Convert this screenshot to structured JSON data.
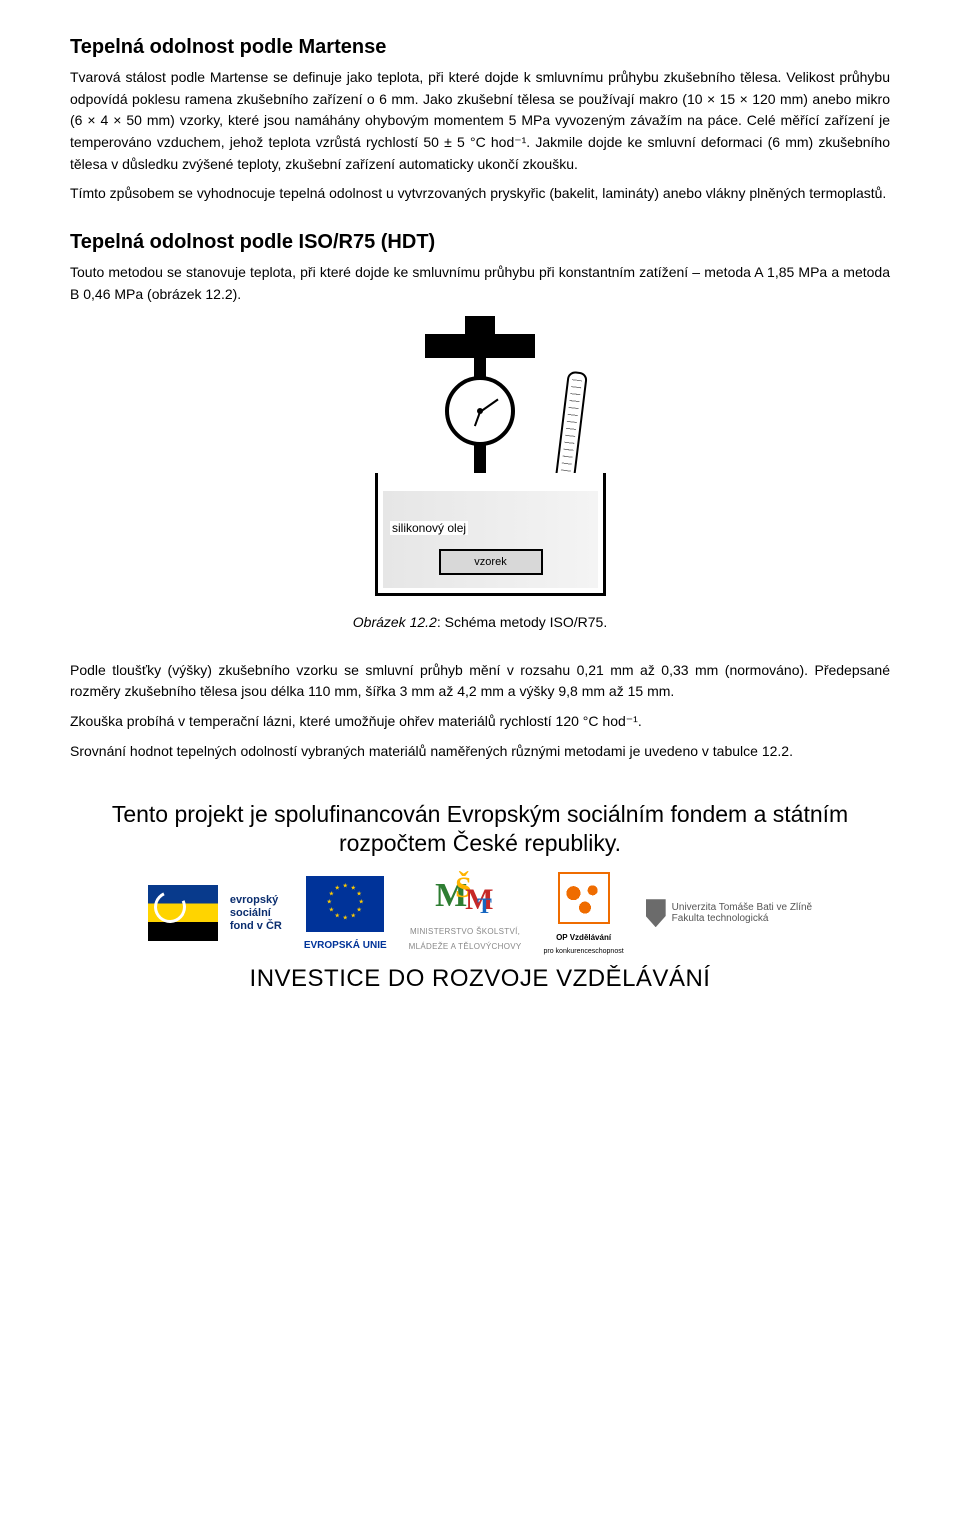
{
  "sections": {
    "martens": {
      "heading": "Tepelná odolnost podle Martense",
      "para1": "Tvarová stálost podle Martense se definuje jako teplota, při které dojde k smluvnímu průhybu zkušebního tělesa. Velikost průhybu odpovídá poklesu ramena zkušebního zařízení o 6 mm. Jako zkušební tělesa se používají makro (10 × 15 × 120 mm) anebo mikro (6 × 4 × 50 mm) vzorky, které jsou namáhány ohybovým momentem 5 MPa vyvozeným závažím na páce. Celé měřící zařízení je temperováno vzduchem, jehož teplota vzrůstá rychlostí 50 ± 5 °C hod⁻¹. Jakmile dojde ke smluvní deformaci (6 mm) zkušebního tělesa v důsledku zvýšené teploty, zkušební zařízení automaticky ukončí zkoušku.",
      "para2": "Tímto způsobem se vyhodnocuje tepelná odolnost u vytvrzovaných pryskyřic (bakelit, lamináty) anebo vlákny plněných termoplastů."
    },
    "hdt": {
      "heading": "Tepelná odolnost podle ISO/R75 (HDT)",
      "para1": "Touto metodou se stanovuje teplota, při které dojde ke smluvnímu průhybu při konstantním zatížení – metoda A 1,85 MPa a metoda B 0,46 MPa (obrázek 12.2).",
      "figure": {
        "oil_label": "silikonový olej",
        "sample_label": "vzorek"
      },
      "caption_em": "Obrázek 12.2",
      "caption_rest": ": Schéma metody ISO/R75.",
      "para2": "Podle tloušťky (výšky) zkušebního vzorku se smluvní průhyb mění v rozsahu 0,21 mm až 0,33 mm (normováno). Předepsané rozměry zkušebního tělesa jsou délka 110 mm, šířka 3 mm až 4,2 mm a výšky 9,8 mm až 15 mm.",
      "para3": "Zkouška probíhá v temperační lázni, které umožňuje ohřev materiálů rychlostí 120 °C hod⁻¹.",
      "para4": "Srovnání hodnot tepelných odolností vybraných materiálů naměřených různými metodami je uvedeno v tabulce 12.2."
    }
  },
  "footer": {
    "sponsor_line": "Tento projekt je spolufinancován Evropským sociálním fondem a státním rozpočtem České republiky.",
    "esf_lines": "evropský\nsociální\nfond v ČR",
    "eu_label": "EVROPSKÁ UNIE",
    "msmt_line1": "MINISTERSTVO ŠKOLSTVÍ,",
    "msmt_line2": "MLÁDEŽE A TĚLOVÝCHOVY",
    "op_line1": "OP Vzdělávání",
    "op_line2": "pro konkurenceschopnost",
    "utb_line1": "Univerzita Tomáše Bati ve Zlíně",
    "utb_line2": "Fakulta technologická",
    "invest": "INVESTICE DO ROZVOJE VZDĚLÁVÁNÍ"
  },
  "colors": {
    "text": "#000000",
    "background": "#ffffff",
    "eu_blue": "#003399",
    "eu_gold": "#ffcc00",
    "op_orange": "#ef6c00"
  }
}
